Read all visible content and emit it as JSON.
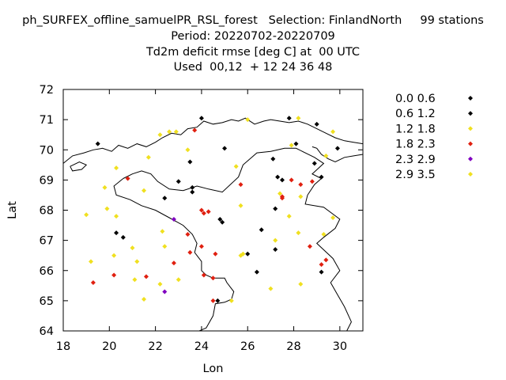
{
  "chart_data": {
    "type": "scatter",
    "title_lines": [
      "ph_SURFEX_offline_samuelPR_RSL_forest   Selection: FinlandNorth     99 stations",
      "Period: 20220702-20220709",
      "Td2m deficit rmse [deg C] at  00 UTC",
      "Used  00,12  + 12 24 36 48"
    ],
    "xlabel": "Lon",
    "ylabel": "Lat",
    "xlim": [
      18,
      31
    ],
    "ylim": [
      64,
      72
    ],
    "xticks": [
      18,
      20,
      22,
      24,
      26,
      28,
      30
    ],
    "yticks": [
      64,
      65,
      66,
      67,
      68,
      69,
      70,
      71,
      72
    ],
    "legend_position": "right",
    "series": [
      {
        "name": "0.0 0.6",
        "color": "#000000",
        "points": [
          [
            24.0,
            71.05
          ],
          [
            27.8,
            71.05
          ],
          [
            28.1,
            70.2
          ],
          [
            29.0,
            70.85
          ],
          [
            29.9,
            70.05
          ],
          [
            19.5,
            70.2
          ],
          [
            25.0,
            70.05
          ],
          [
            23.5,
            69.6
          ],
          [
            23.0,
            68.95
          ],
          [
            23.6,
            68.75
          ],
          [
            23.6,
            68.6
          ],
          [
            22.4,
            68.4
          ],
          [
            27.1,
            69.7
          ],
          [
            27.3,
            69.1
          ],
          [
            27.5,
            69.0
          ],
          [
            29.2,
            69.1
          ],
          [
            28.9,
            69.55
          ],
          [
            27.2,
            68.05
          ],
          [
            20.3,
            67.25
          ],
          [
            20.6,
            67.1
          ],
          [
            24.8,
            67.7
          ],
          [
            24.9,
            67.6
          ],
          [
            26.6,
            67.35
          ],
          [
            27.2,
            66.7
          ],
          [
            26.0,
            66.55
          ],
          [
            26.4,
            65.95
          ],
          [
            29.2,
            65.95
          ],
          [
            24.7,
            65.0
          ]
        ]
      },
      {
        "name": "0.6 1.2",
        "color": "#000000",
        "points": []
      },
      {
        "name": "1.2 1.8",
        "color": "#f0e020",
        "points": [
          [
            28.2,
            71.05
          ],
          [
            26.0,
            71.0
          ],
          [
            22.2,
            70.5
          ],
          [
            22.6,
            70.6
          ],
          [
            22.9,
            70.6
          ],
          [
            23.4,
            70.0
          ],
          [
            21.7,
            69.75
          ],
          [
            20.3,
            69.4
          ],
          [
            19.8,
            68.75
          ],
          [
            19.9,
            68.05
          ],
          [
            21.5,
            68.65
          ],
          [
            20.3,
            67.8
          ],
          [
            19.0,
            67.85
          ],
          [
            25.5,
            69.45
          ],
          [
            25.7,
            68.15
          ],
          [
            27.4,
            68.55
          ],
          [
            27.9,
            70.15
          ],
          [
            29.4,
            69.8
          ],
          [
            28.3,
            68.45
          ],
          [
            29.7,
            67.75
          ],
          [
            28.2,
            67.25
          ],
          [
            27.8,
            67.8
          ],
          [
            27.2,
            67.0
          ],
          [
            29.3,
            67.2
          ],
          [
            22.3,
            67.3
          ],
          [
            21.0,
            66.75
          ],
          [
            20.2,
            66.5
          ],
          [
            21.2,
            66.3
          ],
          [
            19.2,
            66.3
          ],
          [
            22.4,
            66.8
          ],
          [
            25.7,
            66.5
          ],
          [
            25.8,
            66.55
          ],
          [
            21.1,
            65.7
          ],
          [
            21.5,
            65.05
          ],
          [
            22.2,
            65.55
          ],
          [
            23.0,
            65.7
          ],
          [
            25.3,
            65.0
          ],
          [
            27.0,
            65.4
          ],
          [
            28.3,
            65.55
          ],
          [
            29.7,
            70.6
          ]
        ]
      },
      {
        "name": "1.8 2.3",
        "color": "#e02010",
        "points": [
          [
            23.7,
            70.65
          ],
          [
            20.8,
            69.05
          ],
          [
            24.0,
            68.0
          ],
          [
            24.1,
            67.9
          ],
          [
            24.3,
            67.95
          ],
          [
            25.7,
            68.85
          ],
          [
            27.5,
            68.4
          ],
          [
            27.5,
            68.45
          ],
          [
            27.9,
            69.0
          ],
          [
            28.3,
            68.85
          ],
          [
            28.8,
            68.95
          ],
          [
            23.4,
            67.2
          ],
          [
            24.0,
            66.8
          ],
          [
            23.5,
            66.6
          ],
          [
            24.6,
            66.55
          ],
          [
            22.8,
            66.25
          ],
          [
            20.2,
            65.85
          ],
          [
            21.6,
            65.8
          ],
          [
            24.1,
            65.85
          ],
          [
            24.5,
            65.75
          ],
          [
            19.3,
            65.6
          ],
          [
            24.5,
            65.0
          ],
          [
            28.7,
            66.8
          ],
          [
            29.2,
            66.2
          ],
          [
            29.4,
            66.35
          ]
        ]
      },
      {
        "name": "2.3 2.9",
        "color": "#8000c0",
        "points": [
          [
            22.8,
            67.7
          ],
          [
            22.4,
            65.3
          ]
        ]
      },
      {
        "name": "2.9 3.5",
        "color": "#f0e020",
        "points": []
      }
    ],
    "legend_entries": [
      {
        "label": "0.0 0.6",
        "color": "#000000"
      },
      {
        "label": "0.6 1.2",
        "color": "#000000"
      },
      {
        "label": "1.2 1.8",
        "color": "#f0e020"
      },
      {
        "label": "1.8 2.3",
        "color": "#e02010"
      },
      {
        "label": "2.3 2.9",
        "color": "#8000c0"
      },
      {
        "label": "2.9 3.5",
        "color": "#f0e020"
      }
    ],
    "coastline": [
      [
        [
          18.0,
          69.55
        ],
        [
          18.4,
          69.8
        ],
        [
          18.9,
          69.9
        ],
        [
          19.3,
          70.0
        ],
        [
          19.7,
          70.05
        ],
        [
          20.1,
          69.95
        ],
        [
          20.4,
          70.15
        ],
        [
          20.8,
          70.05
        ],
        [
          21.2,
          70.2
        ],
        [
          21.6,
          70.1
        ],
        [
          22.0,
          70.25
        ],
        [
          22.3,
          70.4
        ],
        [
          22.7,
          70.55
        ],
        [
          23.1,
          70.5
        ],
        [
          23.4,
          70.7
        ],
        [
          23.8,
          70.75
        ],
        [
          24.1,
          70.95
        ],
        [
          24.5,
          70.85
        ],
        [
          24.9,
          70.9
        ],
        [
          25.3,
          71.0
        ],
        [
          25.6,
          70.95
        ],
        [
          25.9,
          71.05
        ],
        [
          26.3,
          70.85
        ],
        [
          26.7,
          70.95
        ],
        [
          27.0,
          71.0
        ],
        [
          27.4,
          70.95
        ],
        [
          27.8,
          70.9
        ],
        [
          28.2,
          70.95
        ],
        [
          28.6,
          70.85
        ],
        [
          29.0,
          70.7
        ],
        [
          29.4,
          70.55
        ],
        [
          29.8,
          70.4
        ],
        [
          30.2,
          70.3
        ],
        [
          30.6,
          70.25
        ],
        [
          31.0,
          70.2
        ]
      ],
      [
        [
          31.0,
          69.85
        ],
        [
          30.6,
          69.8
        ],
        [
          30.2,
          69.75
        ],
        [
          29.8,
          69.6
        ],
        [
          29.5,
          69.7
        ],
        [
          29.2,
          69.85
        ],
        [
          29.0,
          70.05
        ],
        [
          28.8,
          70.1
        ]
      ],
      [
        [
          18.3,
          69.45
        ],
        [
          18.7,
          69.6
        ],
        [
          19.0,
          69.5
        ],
        [
          18.8,
          69.35
        ],
        [
          18.4,
          69.3
        ],
        [
          18.3,
          69.45
        ]
      ]
    ],
    "border": [
      [
        [
          20.6,
          69.05
        ],
        [
          21.0,
          69.2
        ],
        [
          21.4,
          69.3
        ],
        [
          21.8,
          69.2
        ],
        [
          22.1,
          68.95
        ],
        [
          22.6,
          68.7
        ],
        [
          23.2,
          68.65
        ],
        [
          23.8,
          68.8
        ],
        [
          24.3,
          68.7
        ],
        [
          24.9,
          68.6
        ],
        [
          25.6,
          69.1
        ],
        [
          25.8,
          69.5
        ],
        [
          26.4,
          69.9
        ],
        [
          27.0,
          69.95
        ],
        [
          27.6,
          70.05
        ],
        [
          28.1,
          70.05
        ],
        [
          28.9,
          69.75
        ],
        [
          29.3,
          69.55
        ],
        [
          28.8,
          69.2
        ],
        [
          29.2,
          69.05
        ],
        [
          28.9,
          68.85
        ],
        [
          28.6,
          68.5
        ],
        [
          28.5,
          68.2
        ],
        [
          29.3,
          68.1
        ],
        [
          30.0,
          67.7
        ],
        [
          29.8,
          67.4
        ],
        [
          29.3,
          67.1
        ],
        [
          29.0,
          66.9
        ],
        [
          29.7,
          66.4
        ],
        [
          30.0,
          66.0
        ],
        [
          29.6,
          65.6
        ],
        [
          29.9,
          65.2
        ],
        [
          30.2,
          64.8
        ],
        [
          30.5,
          64.3
        ],
        [
          30.3,
          64.0
        ]
      ],
      [
        [
          20.6,
          69.05
        ],
        [
          20.2,
          68.8
        ],
        [
          20.3,
          68.5
        ],
        [
          20.9,
          68.35
        ],
        [
          21.4,
          68.15
        ],
        [
          22.0,
          68.0
        ],
        [
          22.6,
          67.75
        ],
        [
          23.2,
          67.5
        ],
        [
          23.6,
          67.2
        ],
        [
          23.8,
          66.9
        ],
        [
          23.7,
          66.6
        ],
        [
          24.0,
          66.3
        ],
        [
          24.0,
          66.0
        ],
        [
          24.2,
          65.85
        ],
        [
          24.5,
          65.75
        ],
        [
          25.0,
          65.75
        ],
        [
          25.1,
          65.6
        ],
        [
          25.4,
          65.3
        ],
        [
          25.3,
          65.05
        ],
        [
          25.0,
          64.95
        ],
        [
          24.6,
          64.9
        ],
        [
          24.5,
          64.5
        ],
        [
          24.2,
          64.1
        ],
        [
          23.9,
          64.0
        ]
      ]
    ]
  }
}
